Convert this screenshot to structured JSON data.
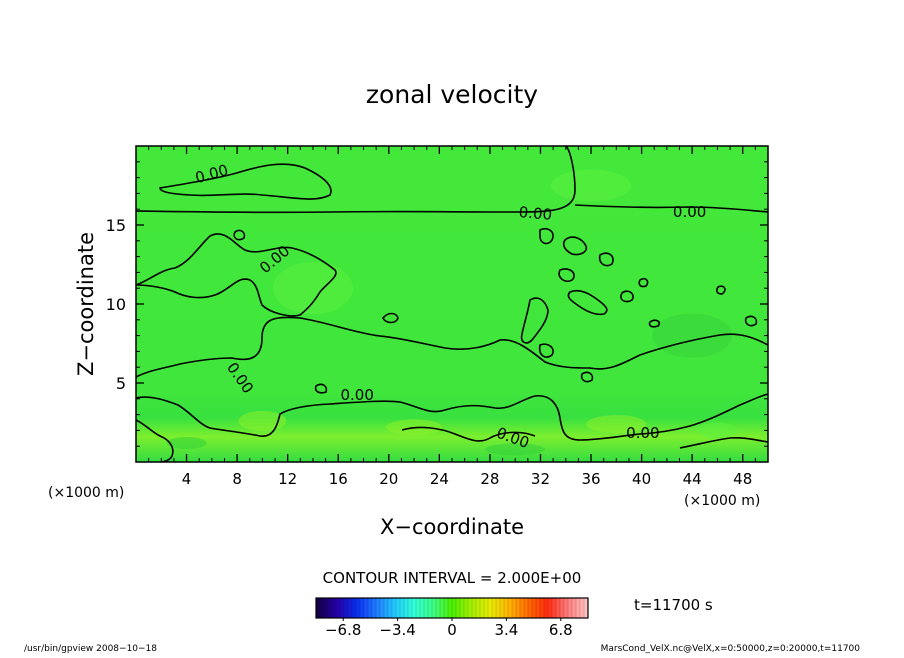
{
  "chart_data": {
    "type": "heatmap",
    "title": "zonal velocity",
    "xlabel": "X−coordinate",
    "ylabel": "Z−coordinate",
    "x_unit": "(×1000 m)",
    "y_unit": "(×1000 m)",
    "xlim": [
      0,
      50
    ],
    "ylim": [
      0,
      20
    ],
    "xticks": [
      4,
      8,
      12,
      16,
      20,
      24,
      28,
      32,
      36,
      40,
      44,
      48
    ],
    "yticks": [
      5,
      10,
      15
    ],
    "contour_interval_text": "CONTOUR INTERVAL = 2.000E+00",
    "contour_labels": [
      {
        "text": "0.00",
        "x": 6.0,
        "y": 18.2,
        "rot": -15
      },
      {
        "text": "0.00",
        "x": 31.6,
        "y": 15.7,
        "rot": 5
      },
      {
        "text": "0.00",
        "x": 43.8,
        "y": 15.8,
        "rot": 0
      },
      {
        "text": "0.00",
        "x": 11.0,
        "y": 12.8,
        "rot": -40
      },
      {
        "text": "0.00",
        "x": 8.2,
        "y": 5.3,
        "rot": 55
      },
      {
        "text": "0.00",
        "x": 17.5,
        "y": 4.2,
        "rot": 0
      },
      {
        "text": "0.00",
        "x": 29.8,
        "y": 1.5,
        "rot": 20
      },
      {
        "text": "0.00",
        "x": 40.1,
        "y": 1.8,
        "rot": 0
      }
    ],
    "colorbar": {
      "min": -8.5,
      "max": 8.5,
      "ticks": [
        -6.8,
        -3.4,
        0,
        3.4,
        6.8
      ],
      "tick_labels": [
        "−6.8",
        "−3.4",
        "0",
        "3.4",
        "6.8"
      ],
      "colors": [
        "#14004a",
        "#2600a8",
        "#0a2cf0",
        "#1f78ff",
        "#22c8ff",
        "#30ffd8",
        "#3cff8a",
        "#4cf000",
        "#a4f000",
        "#e8ec00",
        "#ffb400",
        "#ff6a00",
        "#ff2a10",
        "#ff7a7a",
        "#ffc0c0"
      ]
    }
  },
  "time_text": "t=11700 s",
  "footer_left": "/usr/bin/gpview   2008−10−18",
  "footer_right": "MarsCond_VelX.nc@VelX,x=0:50000,z=0:20000,t=11700",
  "colors": {
    "field": "#44e83a",
    "field_dark": "#35d23a",
    "field_light": "#5cf040",
    "field_warm": "#8cf12a"
  }
}
